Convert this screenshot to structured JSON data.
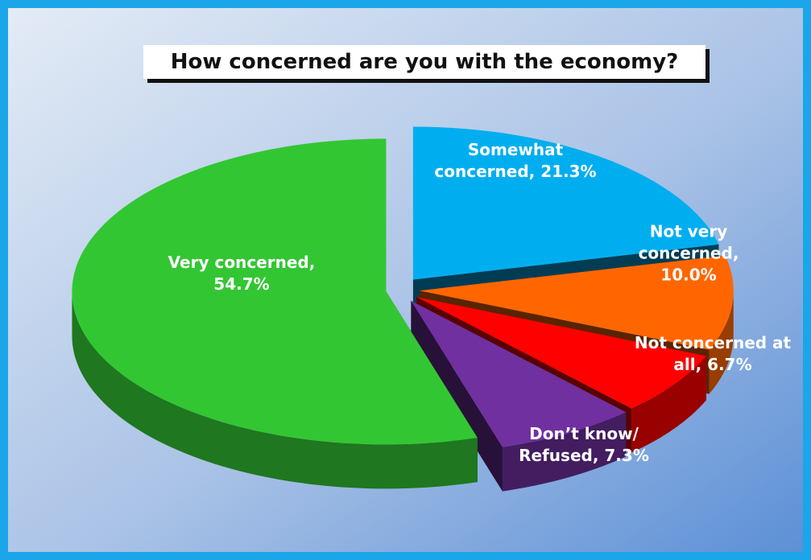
{
  "chart_data": {
    "type": "pie",
    "title": "How concerned are you with the economy?",
    "values": [
      54.7,
      21.3,
      10.0,
      6.7,
      7.3
    ],
    "value_labels": [
      "Very concerned, 54.7%",
      "Somewhat concerned, 21.3%",
      "Not very concerned, 10.0%",
      "Not concerned at all, 6.7%",
      "Don’t know/ Refused, 7.3%"
    ],
    "colors": [
      "#33c633",
      "#00aeef",
      "#ff6600",
      "#ff0000",
      "#7030a0"
    ]
  }
}
